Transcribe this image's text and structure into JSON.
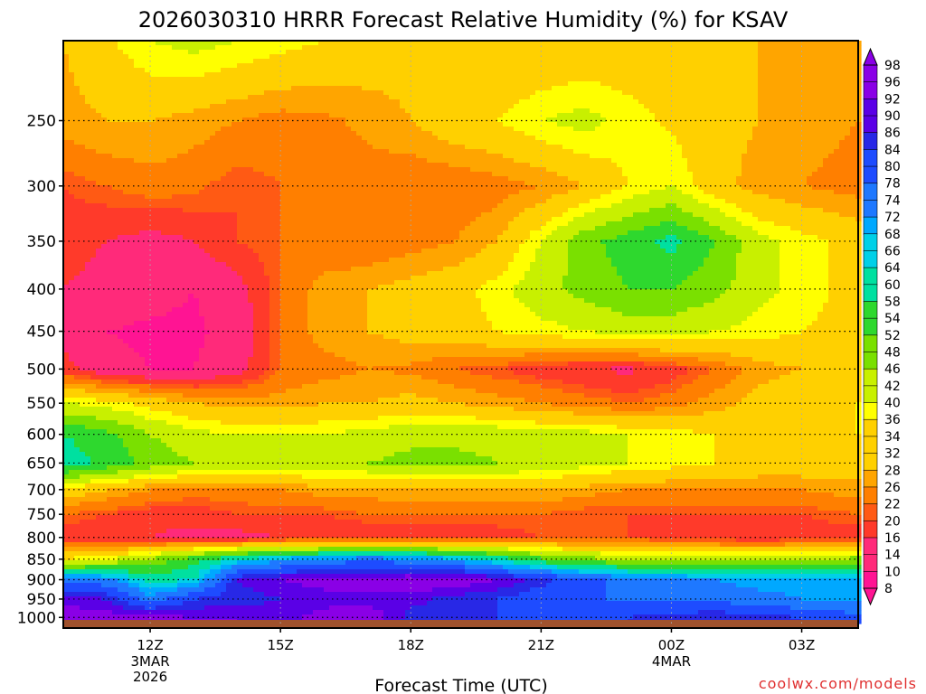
{
  "chart_data": {
    "type": "heatmap",
    "title": "2026030310 HRRR Forecast Relative Humidity (%) for KSAV",
    "xlabel": "Forecast Time (UTC)",
    "credit": "coolwx.com/models",
    "y_scale": "log",
    "ylim": [
      1030,
      200
    ],
    "xlim": [
      10,
      28.3
    ],
    "y_ticks": [
      {
        "value": 250,
        "label": "250"
      },
      {
        "value": 300,
        "label": "300"
      },
      {
        "value": 350,
        "label": "350"
      },
      {
        "value": 400,
        "label": "400"
      },
      {
        "value": 450,
        "label": "450"
      },
      {
        "value": 500,
        "label": "500"
      },
      {
        "value": 550,
        "label": "550"
      },
      {
        "value": 600,
        "label": "600"
      },
      {
        "value": 650,
        "label": "650"
      },
      {
        "value": 700,
        "label": "700"
      },
      {
        "value": 750,
        "label": "750"
      },
      {
        "value": 800,
        "label": "800"
      },
      {
        "value": 850,
        "label": "850"
      },
      {
        "value": 900,
        "label": "900"
      },
      {
        "value": 950,
        "label": "950"
      },
      {
        "value": 1000,
        "label": "1000"
      }
    ],
    "x_ticks": [
      {
        "value": 12,
        "label": "12Z",
        "sub": [
          "3MAR",
          "2026"
        ]
      },
      {
        "value": 15,
        "label": "15Z",
        "sub": []
      },
      {
        "value": 18,
        "label": "18Z",
        "sub": []
      },
      {
        "value": 21,
        "label": "21Z",
        "sub": []
      },
      {
        "value": 24,
        "label": "00Z",
        "sub": [
          "4MAR"
        ]
      },
      {
        "value": 27,
        "label": "03Z",
        "sub": []
      }
    ],
    "colorbar_levels": [
      98,
      96,
      92,
      90,
      86,
      84,
      80,
      78,
      74,
      72,
      68,
      66,
      64,
      60,
      58,
      54,
      52,
      48,
      46,
      42,
      40,
      36,
      34,
      32,
      28,
      26,
      22,
      20,
      16,
      14,
      10,
      8
    ],
    "colors": {
      "ground": "#a0522d",
      "ramp": [
        "#ff1493",
        "#ff2a7a",
        "#ff3a2a",
        "#ff5a14",
        "#ff7f00",
        "#ffa500",
        "#ffd000",
        "#ffff00",
        "#c8f000",
        "#7ae000",
        "#2ed82e",
        "#00e0a0",
        "#00d0e8",
        "#00a8ff",
        "#1e78ff",
        "#1e4cff",
        "#2828e6",
        "#5a00e6",
        "#8a00e6"
      ]
    },
    "series_grid": {
      "x": [
        10,
        11,
        12,
        13,
        14,
        15,
        16,
        17,
        18,
        19,
        20,
        21,
        22,
        23,
        24,
        25,
        26,
        27,
        28.3
      ],
      "p": [
        200,
        250,
        300,
        350,
        400,
        450,
        500,
        550,
        600,
        650,
        700,
        750,
        800,
        850,
        900,
        950,
        1000,
        1030
      ],
      "rh": [
        [
          30,
          35,
          40,
          42,
          40,
          38,
          36,
          34,
          32,
          31,
          30,
          30,
          31,
          32,
          33,
          32,
          30,
          30,
          30
        ],
        [
          28,
          30,
          30,
          28,
          26,
          24,
          25,
          27,
          30,
          34,
          36,
          40,
          42,
          38,
          35,
          32,
          30,
          28,
          26
        ],
        [
          20,
          22,
          24,
          23,
          20,
          22,
          24,
          24,
          22,
          22,
          24,
          26,
          30,
          36,
          40,
          32,
          28,
          26,
          24
        ],
        [
          18,
          16,
          14,
          16,
          20,
          22,
          22,
          22,
          24,
          26,
          30,
          40,
          50,
          55,
          60,
          52,
          42,
          38,
          34
        ],
        [
          16,
          14,
          12,
          10,
          14,
          22,
          28,
          30,
          32,
          34,
          38,
          44,
          48,
          52,
          52,
          48,
          42,
          38,
          34
        ],
        [
          14,
          10,
          9,
          9,
          12,
          22,
          28,
          30,
          32,
          34,
          36,
          38,
          40,
          42,
          42,
          40,
          38,
          36,
          34
        ],
        [
          18,
          12,
          10,
          10,
          14,
          22,
          24,
          26,
          25,
          22,
          20,
          18,
          16,
          15,
          18,
          22,
          28,
          30,
          32
        ],
        [
          40,
          38,
          34,
          30,
          28,
          28,
          30,
          30,
          32,
          30,
          28,
          26,
          24,
          22,
          24,
          28,
          32,
          34,
          36
        ],
        [
          58,
          54,
          46,
          42,
          40,
          40,
          40,
          42,
          44,
          44,
          44,
          42,
          42,
          40,
          38,
          36,
          34,
          34,
          36
        ],
        [
          62,
          56,
          50,
          46,
          44,
          44,
          46,
          46,
          48,
          48,
          46,
          44,
          42,
          40,
          38,
          36,
          34,
          34,
          34
        ],
        [
          34,
          30,
          26,
          24,
          24,
          26,
          28,
          28,
          30,
          30,
          30,
          30,
          28,
          26,
          26,
          26,
          26,
          26,
          28
        ],
        [
          22,
          20,
          18,
          18,
          20,
          20,
          20,
          22,
          22,
          22,
          22,
          22,
          20,
          20,
          20,
          20,
          20,
          20,
          22
        ],
        [
          18,
          16,
          16,
          14,
          14,
          16,
          16,
          16,
          18,
          18,
          18,
          20,
          20,
          20,
          18,
          18,
          16,
          18,
          18
        ],
        [
          36,
          40,
          46,
          56,
          64,
          70,
          74,
          76,
          74,
          70,
          62,
          54,
          48,
          46,
          44,
          44,
          44,
          46,
          48
        ],
        [
          76,
          74,
          62,
          64,
          88,
          92,
          94,
          95,
          96,
          96,
          92,
          86,
          80,
          76,
          74,
          72,
          70,
          70,
          68
        ],
        [
          90,
          88,
          74,
          84,
          86,
          88,
          90,
          90,
          90,
          86,
          84,
          80,
          78,
          78,
          76,
          76,
          74,
          72,
          70
        ],
        [
          96,
          94,
          94,
          92,
          92,
          90,
          94,
          96,
          86,
          84,
          84,
          82,
          82,
          84,
          86,
          88,
          86,
          84,
          80
        ],
        [
          96,
          94,
          94,
          92,
          92,
          90,
          94,
          96,
          86,
          84,
          84,
          82,
          82,
          84,
          86,
          88,
          86,
          84,
          80
        ]
      ]
    }
  }
}
